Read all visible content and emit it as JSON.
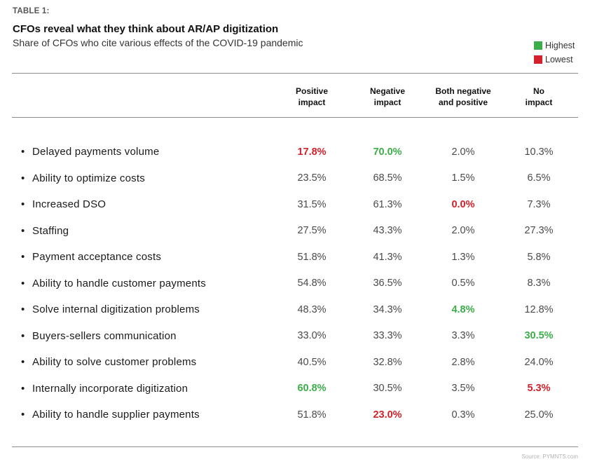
{
  "eyebrow": "TABLE 1:",
  "title": "CFOs reveal what they think about AR/AP digitization",
  "subtitle": "Share of CFOs who cite various effects of the COVID-19 pandemic",
  "legend": {
    "highest_label": "Highest",
    "lowest_label": "Lowest",
    "highest_color": "#3cae49",
    "lowest_color": "#d4202a"
  },
  "source": "Source: PYMNTS.com",
  "chart_data": {
    "type": "table",
    "title": "CFOs reveal what they think about AR/AP digitization",
    "subtitle": "Share of CFOs who cite various effects of the COVID-19 pandemic",
    "columns": [
      "Positive\nimpact",
      "Negative\nimpact",
      "Both negative\nand positive",
      "No\nimpact"
    ],
    "rows": [
      {
        "label": "Delayed payments volume",
        "values": [
          "17.8%",
          "70.0%",
          "2.0%",
          "10.3%"
        ],
        "marks": [
          "lo",
          "hi",
          "",
          ""
        ]
      },
      {
        "label": "Ability to optimize costs",
        "values": [
          "23.5%",
          "68.5%",
          "1.5%",
          "6.5%"
        ],
        "marks": [
          "",
          "",
          "",
          ""
        ]
      },
      {
        "label": "Increased DSO",
        "values": [
          "31.5%",
          "61.3%",
          "0.0%",
          "7.3%"
        ],
        "marks": [
          "",
          "",
          "lo",
          ""
        ]
      },
      {
        "label": "Staffing",
        "values": [
          "27.5%",
          "43.3%",
          "2.0%",
          "27.3%"
        ],
        "marks": [
          "",
          "",
          "",
          ""
        ]
      },
      {
        "label": "Payment acceptance costs",
        "values": [
          "51.8%",
          "41.3%",
          "1.3%",
          "5.8%"
        ],
        "marks": [
          "",
          "",
          "",
          ""
        ]
      },
      {
        "label": "Ability to handle customer payments",
        "values": [
          "54.8%",
          "36.5%",
          "0.5%",
          "8.3%"
        ],
        "marks": [
          "",
          "",
          "",
          ""
        ]
      },
      {
        "label": "Solve internal digitization problems",
        "values": [
          "48.3%",
          "34.3%",
          "4.8%",
          "12.8%"
        ],
        "marks": [
          "",
          "",
          "hi",
          ""
        ]
      },
      {
        "label": "Buyers-sellers communication",
        "values": [
          "33.0%",
          "33.3%",
          "3.3%",
          "30.5%"
        ],
        "marks": [
          "",
          "",
          "",
          "hi"
        ]
      },
      {
        "label": "Ability to solve customer problems",
        "values": [
          "40.5%",
          "32.8%",
          "2.8%",
          "24.0%"
        ],
        "marks": [
          "",
          "",
          "",
          ""
        ]
      },
      {
        "label": "Internally incorporate digitization",
        "values": [
          "60.8%",
          "30.5%",
          "3.5%",
          "5.3%"
        ],
        "marks": [
          "hi",
          "",
          "",
          "lo"
        ]
      },
      {
        "label": "Ability to handle supplier payments",
        "values": [
          "51.8%",
          "23.0%",
          "0.3%",
          "25.0%"
        ],
        "marks": [
          "",
          "lo",
          "",
          ""
        ]
      }
    ]
  }
}
